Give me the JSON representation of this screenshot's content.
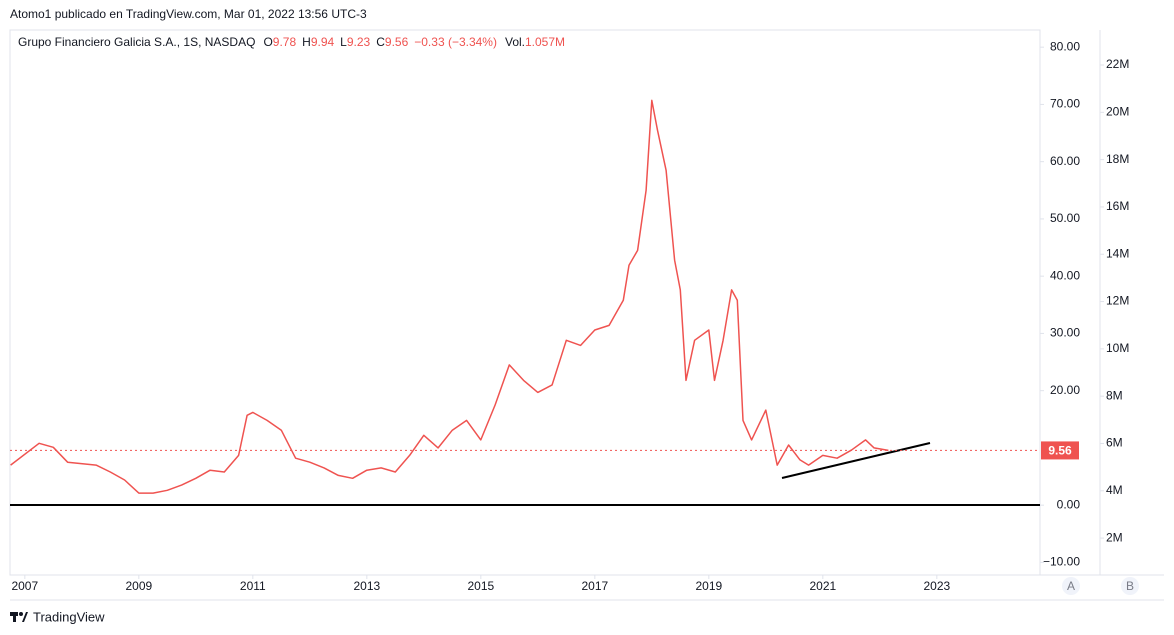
{
  "header": "Atomo1 publicado en TradingView.com, Mar 01, 2022 13:56 UTC-3",
  "legend": {
    "symbol": "Grupo Financiero Galicia S.A., 1S, NASDAQ",
    "ohlc": [
      {
        "label": "O",
        "value": "9.78"
      },
      {
        "label": "H",
        "value": "9.94"
      },
      {
        "label": "L",
        "value": "9.23"
      },
      {
        "label": "C",
        "value": "9.56"
      }
    ],
    "change": "−0.33 (−3.34%)",
    "volume": {
      "label": "Vol.",
      "value": "1.057M"
    }
  },
  "chart_data": {
    "type": "line",
    "color": "#ef5350",
    "grid": false,
    "x": [
      2006.75,
      2007.25,
      2007.5,
      2007.75,
      2008.25,
      2008.5,
      2008.75,
      2009.0,
      2009.25,
      2009.5,
      2009.75,
      2010.0,
      2010.25,
      2010.5,
      2010.75,
      2010.9,
      2011.0,
      2011.25,
      2011.5,
      2011.75,
      2012.0,
      2012.25,
      2012.5,
      2012.75,
      2013.0,
      2013.25,
      2013.5,
      2013.75,
      2014.0,
      2014.25,
      2014.5,
      2014.75,
      2015.0,
      2015.25,
      2015.5,
      2015.75,
      2016.0,
      2016.25,
      2016.5,
      2016.75,
      2017.0,
      2017.25,
      2017.5,
      2017.6,
      2017.75,
      2017.9,
      2018.0,
      2018.1,
      2018.25,
      2018.4,
      2018.5,
      2018.6,
      2018.75,
      2019.0,
      2019.1,
      2019.25,
      2019.4,
      2019.5,
      2019.6,
      2019.75,
      2020.0,
      2020.2,
      2020.4,
      2020.6,
      2020.75,
      2021.0,
      2021.25,
      2021.5,
      2021.75,
      2021.9,
      2022.15
    ],
    "values": [
      7.0,
      10.8,
      10.1,
      7.5,
      7.0,
      5.8,
      4.4,
      2.1,
      2.1,
      2.6,
      3.5,
      4.7,
      6.1,
      5.8,
      8.7,
      15.7,
      16.2,
      14.8,
      13.1,
      8.2,
      7.5,
      6.5,
      5.2,
      4.7,
      6.1,
      6.5,
      5.8,
      8.7,
      12.2,
      10.0,
      13.1,
      14.8,
      11.4,
      17.5,
      24.5,
      21.8,
      19.7,
      21.0,
      28.8,
      27.9,
      30.6,
      31.4,
      35.8,
      41.9,
      44.5,
      55.0,
      70.7,
      65.5,
      58.5,
      42.8,
      37.6,
      21.8,
      28.8,
      30.6,
      21.8,
      28.8,
      37.6,
      35.8,
      14.8,
      11.4,
      16.6,
      7.0,
      10.5,
      7.9,
      7.0,
      8.7,
      8.2,
      9.6,
      11.4,
      10.0,
      9.56
    ],
    "xlim": [
      2006.74,
      2024.81
    ],
    "xticks": [
      2007,
      2009,
      2011,
      2013,
      2015,
      2017,
      2019,
      2021,
      2023
    ],
    "ylim": [
      -12.2,
      83
    ],
    "yticks": [
      {
        "value": -10,
        "label": "−10.00"
      },
      {
        "value": 0,
        "label": "0.00"
      },
      {
        "value": 20,
        "label": "20.00"
      },
      {
        "value": 30,
        "label": "30.00"
      },
      {
        "value": 40,
        "label": "40.00"
      },
      {
        "value": 50,
        "label": "50.00"
      },
      {
        "value": 60,
        "label": "60.00"
      },
      {
        "value": 70,
        "label": "70.00"
      },
      {
        "value": 80,
        "label": "80.00"
      }
    ],
    "y2lim": [
      440000,
      23480000
    ],
    "y2ticks": [
      {
        "value": 2000000,
        "label": "2M"
      },
      {
        "value": 4000000,
        "label": "4M"
      },
      {
        "value": 6000000,
        "label": "6M"
      },
      {
        "value": 8000000,
        "label": "8M"
      },
      {
        "value": 10000000,
        "label": "10M"
      },
      {
        "value": 12000000,
        "label": "12M"
      },
      {
        "value": 14000000,
        "label": "14M"
      },
      {
        "value": 16000000,
        "label": "16M"
      },
      {
        "value": 18000000,
        "label": "18M"
      },
      {
        "value": 20000000,
        "label": "20M"
      },
      {
        "value": 22000000,
        "label": "22M"
      }
    ],
    "last_price": 9.56
  },
  "scale_buttons": [
    "A",
    "B"
  ],
  "footer": "TradingView"
}
